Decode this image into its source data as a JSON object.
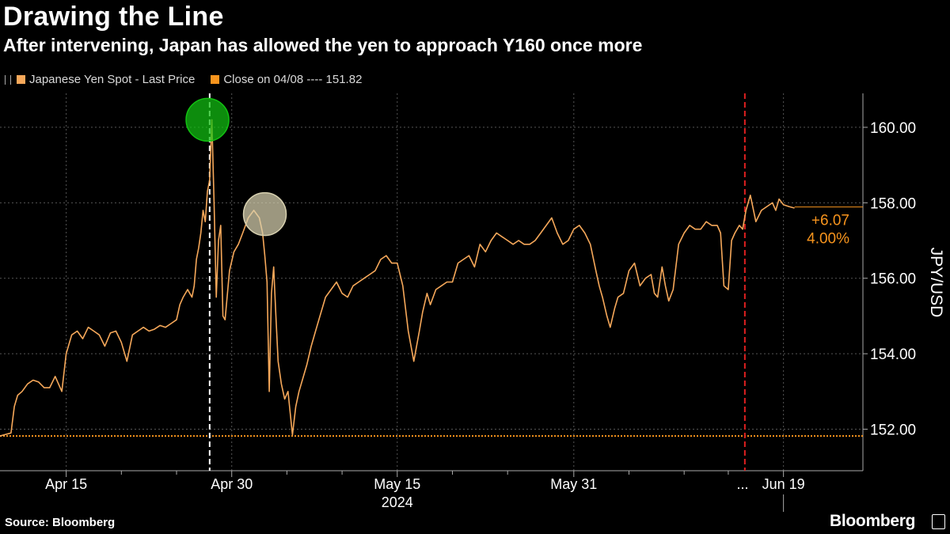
{
  "header": {
    "title": "Drawing the Line",
    "subtitle": "After intervening, Japan has allowed the yen to approach Y160 once more"
  },
  "legend": {
    "series_label": "Japanese Yen Spot - Last Price",
    "close_label": "Close on 04/08 ---- 151.82"
  },
  "footer": {
    "source": "Source: Bloomberg",
    "brand": "Bloomberg"
  },
  "colors": {
    "line": "#f6a85a",
    "close_line": "#f7941d",
    "change": "#f7941d",
    "green_marker": "#12c212",
    "tan_marker": "#d8d1b0",
    "red_marker": "#e02020",
    "white_marker": "#ffffff",
    "grid": "#555555",
    "axis": "#aaaaaa"
  },
  "chart_data": {
    "type": "line",
    "title": "Drawing the Line",
    "subtitle": "After intervening, Japan has allowed the yen to approach Y160 once more",
    "ylabel": "JPY/USD",
    "xlabel": "2024",
    "ylim": [
      150.9,
      160.9
    ],
    "y_ticks": [
      "152.00",
      "154.00",
      "156.00",
      "158.00",
      "160.00"
    ],
    "y_tick_values": [
      152,
      154,
      156,
      158,
      160
    ],
    "x_ticks": [
      {
        "label": "Apr 15",
        "day": 14
      },
      {
        "label": "Apr 30",
        "day": 29
      },
      {
        "label": "May 15",
        "day": 44
      },
      {
        "label": "May 31",
        "day": 60
      },
      {
        "label": "Jun 19",
        "day": 79
      }
    ],
    "x_minor_ticks": [
      19,
      24,
      34,
      39,
      49,
      54,
      65,
      70,
      74
    ],
    "x_break_label": "...",
    "year_label": "2024",
    "x_range_days": [
      8.0,
      86.2
    ],
    "grid": true,
    "legend_position": "top-left",
    "series": [
      {
        "name": "Japanese Yen Spot - Last Price",
        "days": [
          8.0,
          9.0,
          9.3,
          9.6,
          10.0,
          10.5,
          11.0,
          11.5,
          12.0,
          12.5,
          13.0,
          13.6,
          14.0,
          14.5,
          15.0,
          15.5,
          16.0,
          16.5,
          17.0,
          17.5,
          18.0,
          18.5,
          19.0,
          19.5,
          20.0,
          20.5,
          21.0,
          21.5,
          22.0,
          22.5,
          23.0,
          23.5,
          24.0,
          24.3,
          24.6,
          25.0,
          25.2,
          25.4,
          25.6,
          25.8,
          26.0,
          26.2,
          26.4,
          26.6,
          26.8,
          27.0,
          27.2,
          27.4,
          27.6,
          27.8,
          28.0,
          28.2,
          28.4,
          28.8,
          29.2,
          29.6,
          30.0,
          30.5,
          31.0,
          31.5,
          31.8,
          32.0,
          32.2,
          32.4,
          32.6,
          32.8,
          33.0,
          33.2,
          33.5,
          33.8,
          34.1,
          34.5,
          34.8,
          35.1,
          35.4,
          35.8,
          36.2,
          36.6,
          37.0,
          37.5,
          38.0,
          38.5,
          39.0,
          39.5,
          40.0,
          40.5,
          41.0,
          41.5,
          42.0,
          42.5,
          43.0,
          43.5,
          44.0,
          44.5,
          45.0,
          45.5,
          46.0,
          46.3,
          46.7,
          47.0,
          47.5,
          48.0,
          48.5,
          49.0,
          49.5,
          50.0,
          50.5,
          51.0,
          51.5,
          52.0,
          52.5,
          53.0,
          53.5,
          54.0,
          54.5,
          55.0,
          55.5,
          56.0,
          56.5,
          57.0,
          57.5,
          58.0,
          58.5,
          59.0,
          59.5,
          60.0,
          60.5,
          61.0,
          61.5,
          62.0,
          62.3,
          62.6,
          63.0,
          63.3,
          63.7,
          64.0,
          64.5,
          65.0,
          65.5,
          66.0,
          66.5,
          67.0,
          67.3,
          67.6,
          68.0,
          68.3,
          68.6,
          69.0,
          69.5,
          70.0,
          70.5,
          71.0,
          71.5,
          72.0,
          72.5,
          73.0,
          73.3,
          73.6,
          74.0,
          74.3,
          74.6,
          75.0,
          75.3,
          75.6,
          76.0,
          76.5,
          77.0,
          77.5,
          78.0,
          78.3,
          78.6,
          79.0,
          79.5,
          80.0
        ],
        "values": [
          151.82,
          151.9,
          152.6,
          152.9,
          153.0,
          153.2,
          153.3,
          153.25,
          153.1,
          153.1,
          153.4,
          153.0,
          154.0,
          154.5,
          154.6,
          154.4,
          154.7,
          154.6,
          154.5,
          154.2,
          154.55,
          154.6,
          154.3,
          153.8,
          154.5,
          154.6,
          154.7,
          154.6,
          154.65,
          154.75,
          154.7,
          154.8,
          154.9,
          155.3,
          155.5,
          155.7,
          155.6,
          155.5,
          155.8,
          156.5,
          156.8,
          157.2,
          157.8,
          157.5,
          158.3,
          158.6,
          160.2,
          158.0,
          155.5,
          157.0,
          157.4,
          155.0,
          154.9,
          156.2,
          156.7,
          156.9,
          157.2,
          157.6,
          157.8,
          157.6,
          157.2,
          156.6,
          155.9,
          153.0,
          155.6,
          156.3,
          155.0,
          153.8,
          153.2,
          152.8,
          153.0,
          151.85,
          152.6,
          153.0,
          153.3,
          153.7,
          154.2,
          154.6,
          155.0,
          155.5,
          155.7,
          155.9,
          155.6,
          155.5,
          155.8,
          155.9,
          156.0,
          156.1,
          156.2,
          156.5,
          156.6,
          156.4,
          156.4,
          155.8,
          154.6,
          153.8,
          154.6,
          155.1,
          155.6,
          155.3,
          155.7,
          155.8,
          155.9,
          155.9,
          156.4,
          156.5,
          156.6,
          156.3,
          156.9,
          156.7,
          157.0,
          157.2,
          157.1,
          157.0,
          156.9,
          157.0,
          156.9,
          156.9,
          157.0,
          157.2,
          157.4,
          157.6,
          157.2,
          156.9,
          157.0,
          157.3,
          157.4,
          157.2,
          156.9,
          156.2,
          155.8,
          155.5,
          155.0,
          154.7,
          155.2,
          155.5,
          155.6,
          156.2,
          156.4,
          155.8,
          156.0,
          156.1,
          155.6,
          155.5,
          156.3,
          155.8,
          155.4,
          155.7,
          156.9,
          157.2,
          157.4,
          157.3,
          157.3,
          157.5,
          157.4,
          157.4,
          157.2,
          155.8,
          155.7,
          157.0,
          157.2,
          157.4,
          157.3,
          157.8,
          158.2,
          157.5,
          157.8,
          157.9,
          158.0,
          157.8,
          158.1,
          157.95,
          157.9,
          157.86
        ]
      }
    ],
    "close_reference": {
      "label": "Close on 04/08",
      "value": 151.82
    },
    "last_value": 157.89,
    "change_annotation": {
      "abs": "+6.07",
      "pct": "4.00%"
    },
    "markers": [
      {
        "type": "circle",
        "day": 26.8,
        "value": 160.2,
        "color": "green"
      },
      {
        "type": "circle",
        "day": 32.0,
        "value": 157.7,
        "color": "tan"
      },
      {
        "type": "vline",
        "day": 27.0,
        "style": "dashed",
        "color": "white"
      },
      {
        "type": "vline",
        "day": 75.5,
        "style": "dashed",
        "color": "red"
      }
    ]
  }
}
